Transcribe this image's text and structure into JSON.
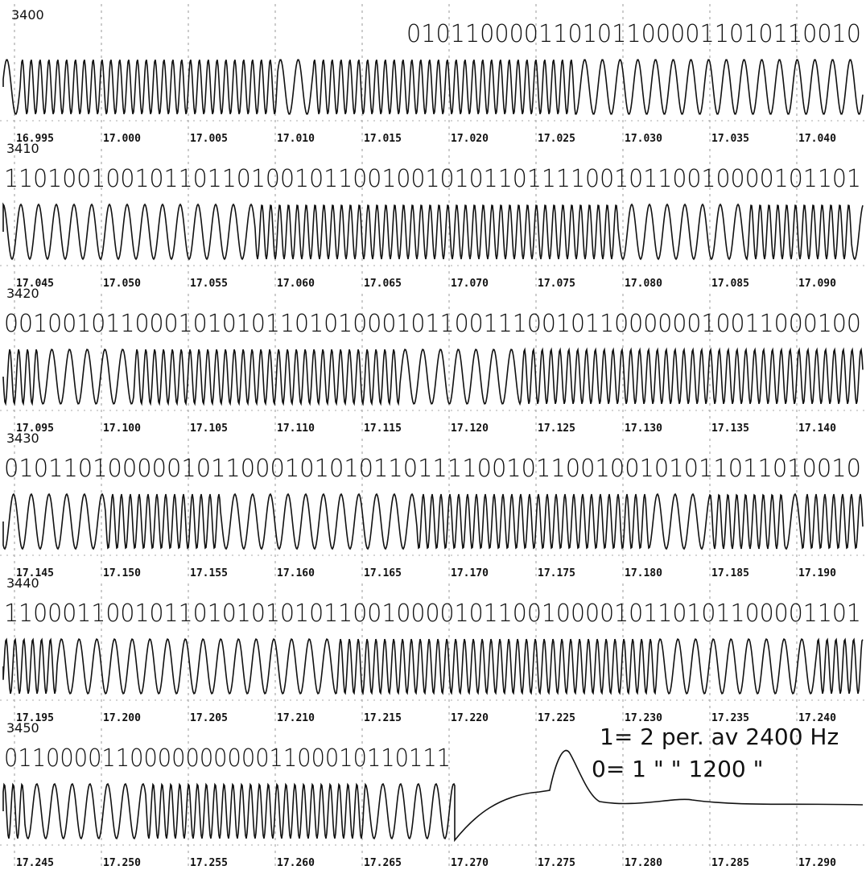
{
  "rows": [
    {
      "label": "3400",
      "bits": "0101100001101011000011010110010",
      "times": [
        "16.995",
        "17.000",
        "17.005",
        "17.010",
        "17.015",
        "17.020",
        "17.025",
        "17.030",
        "17.035",
        "17.040"
      ]
    },
    {
      "label": "3410",
      "bits": "11010010010110110100101100100101011011110010110010000101101",
      "times": [
        "17.045",
        "17.050",
        "17.055",
        "17.060",
        "17.065",
        "17.070",
        "17.075",
        "17.080",
        "17.085",
        "17.090"
      ]
    },
    {
      "label": "3420",
      "bits": "00100101100010101011010100010110011100101100000010011000100",
      "times": [
        "17.095",
        "17.100",
        "17.105",
        "17.110",
        "17.115",
        "17.120",
        "17.125",
        "17.130",
        "17.135",
        "17.140"
      ]
    },
    {
      "label": "3430",
      "bits": "0101101000001011000101010110111100101100100101011011010010",
      "times": [
        "17.145",
        "17.150",
        "17.155",
        "17.160",
        "17.165",
        "17.170",
        "17.175",
        "17.180",
        "17.185",
        "17.190"
      ]
    },
    {
      "label": "3440",
      "bits": "11000110010110101010101100100001011001000010110101100001101",
      "times": [
        "17.195",
        "17.200",
        "17.205",
        "17.210",
        "17.215",
        "17.220",
        "17.225",
        "17.230",
        "17.235",
        "17.240"
      ]
    },
    {
      "label": "3450",
      "bits": "01100001100000000001100010110111",
      "times": [
        "17.245",
        "17.250",
        "17.255",
        "17.260",
        "17.265",
        "17.270",
        "17.275",
        "17.280",
        "17.285",
        "17.290"
      ]
    }
  ],
  "legend": [
    "1= 2 per. av 2400 Hz",
    "0= 1  \"    \"  1200  \""
  ]
}
